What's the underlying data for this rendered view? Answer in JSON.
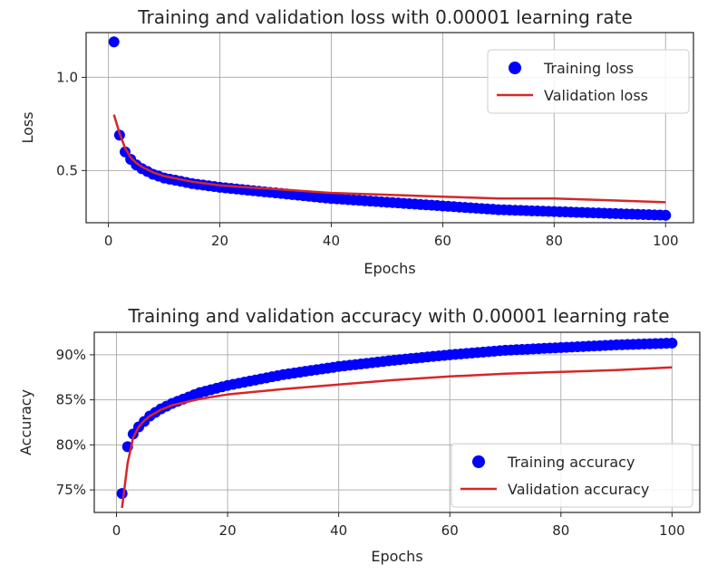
{
  "chart_data": [
    {
      "type": "line",
      "title": "Training and validation loss with 0.00001 learning rate",
      "xlabel": "Epochs",
      "ylabel": "Loss",
      "xlim": [
        -4,
        105
      ],
      "ylim": [
        0.22,
        1.24
      ],
      "xticks": [
        0,
        20,
        40,
        60,
        80,
        100
      ],
      "yticks": [
        0.5,
        1.0
      ],
      "ytick_labels": [
        "0.5",
        "1.0"
      ],
      "grid": true,
      "legend": "top-right",
      "series": [
        {
          "name": "Training loss",
          "style": "marker",
          "color": "#0000ff",
          "x": [
            1,
            2,
            3,
            4,
            5,
            6,
            8,
            10,
            15,
            20,
            30,
            40,
            50,
            60,
            70,
            80,
            90,
            100
          ],
          "y": [
            1.19,
            0.69,
            0.6,
            0.56,
            0.53,
            0.51,
            0.48,
            0.46,
            0.43,
            0.41,
            0.38,
            0.35,
            0.33,
            0.31,
            0.29,
            0.28,
            0.27,
            0.26
          ]
        },
        {
          "name": "Validation loss",
          "style": "line",
          "color": "#d62728",
          "x": [
            1,
            2,
            3,
            4,
            5,
            6,
            8,
            10,
            15,
            20,
            30,
            40,
            50,
            60,
            70,
            80,
            90,
            100
          ],
          "y": [
            0.8,
            0.7,
            0.62,
            0.57,
            0.54,
            0.52,
            0.49,
            0.47,
            0.44,
            0.42,
            0.4,
            0.38,
            0.37,
            0.36,
            0.35,
            0.35,
            0.34,
            0.33
          ]
        }
      ]
    },
    {
      "type": "line",
      "title": "Training and validation accuracy with 0.00001 learning rate",
      "xlabel": "Epochs",
      "ylabel": "Accuracy",
      "xlim": [
        -4,
        105
      ],
      "ylim": [
        72.5,
        92.5
      ],
      "xticks": [
        0,
        20,
        40,
        60,
        80,
        100
      ],
      "yticks": [
        75,
        80,
        85,
        90
      ],
      "ytick_labels": [
        "75%",
        "80%",
        "85%",
        "90%"
      ],
      "grid": true,
      "legend": "bottom-right",
      "series": [
        {
          "name": "Training accuracy",
          "style": "marker",
          "color": "#0000ff",
          "x": [
            1,
            2,
            3,
            4,
            5,
            6,
            8,
            10,
            15,
            20,
            30,
            40,
            50,
            60,
            70,
            80,
            90,
            100
          ],
          "y": [
            74.6,
            79.8,
            81.2,
            82.0,
            82.6,
            83.2,
            84.0,
            84.6,
            85.8,
            86.6,
            87.8,
            88.7,
            89.4,
            90.0,
            90.5,
            90.8,
            91.1,
            91.3
          ]
        },
        {
          "name": "Validation accuracy",
          "style": "line",
          "color": "#d62728",
          "x": [
            1,
            2,
            3,
            4,
            5,
            6,
            8,
            10,
            15,
            20,
            30,
            40,
            50,
            60,
            70,
            80,
            90,
            100
          ],
          "y": [
            73.0,
            78.0,
            80.8,
            82.0,
            82.7,
            83.2,
            83.9,
            84.4,
            85.1,
            85.6,
            86.2,
            86.7,
            87.2,
            87.6,
            87.9,
            88.1,
            88.3,
            88.6
          ]
        }
      ]
    }
  ]
}
